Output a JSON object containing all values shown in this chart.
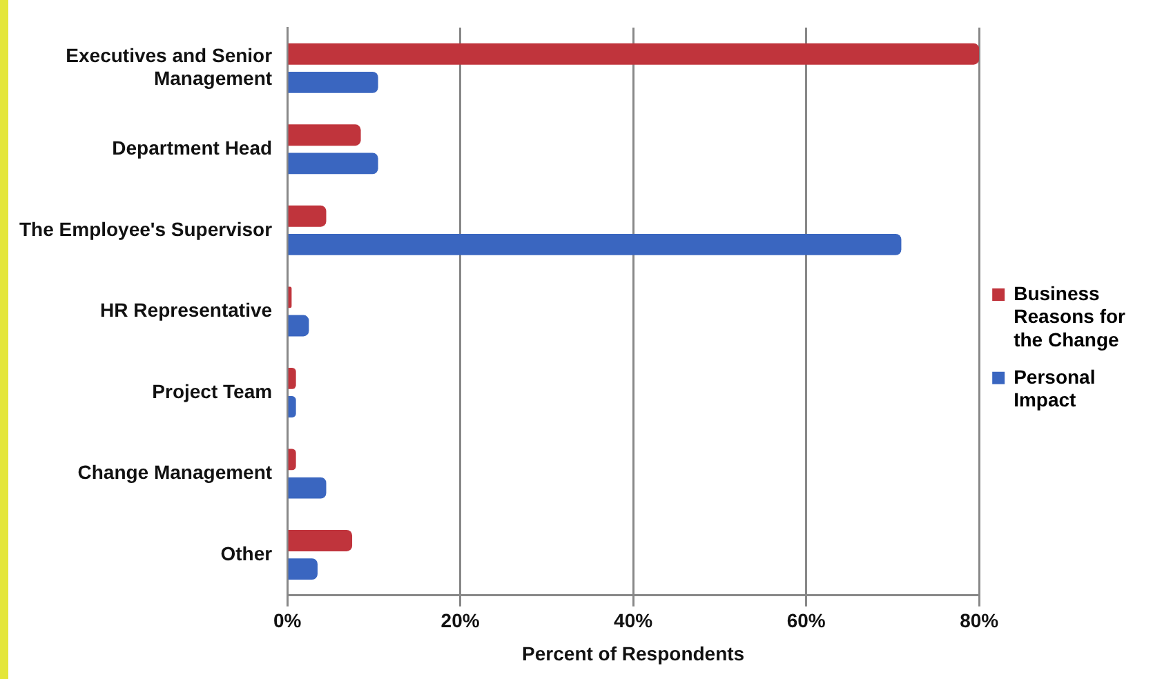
{
  "chart_data": {
    "type": "bar",
    "orientation": "horizontal",
    "xlabel": "Percent of Respondents",
    "categories": [
      "Executives and Senior Management",
      "Department Head",
      "The Employee's Supervisor",
      "HR Representative",
      "Project Team",
      "Change Management",
      "Other"
    ],
    "series": [
      {
        "name": "Business Reasons for the Change",
        "color": "#c0343c",
        "values": [
          80,
          8.5,
          4.5,
          0.5,
          1,
          1,
          7.5
        ]
      },
      {
        "name": "Personal Impact",
        "color": "#3a66c0",
        "values": [
          10.5,
          10.5,
          71,
          2.5,
          1,
          4.5,
          3.5
        ]
      }
    ],
    "xlim": [
      0,
      80
    ],
    "xticks": [
      {
        "value": 0,
        "label": "0%"
      },
      {
        "value": 20,
        "label": "20%"
      },
      {
        "value": 40,
        "label": "40%"
      },
      {
        "value": 60,
        "label": "60%"
      },
      {
        "value": 80,
        "label": "80%"
      }
    ],
    "grid": "x",
    "legend": "right"
  }
}
